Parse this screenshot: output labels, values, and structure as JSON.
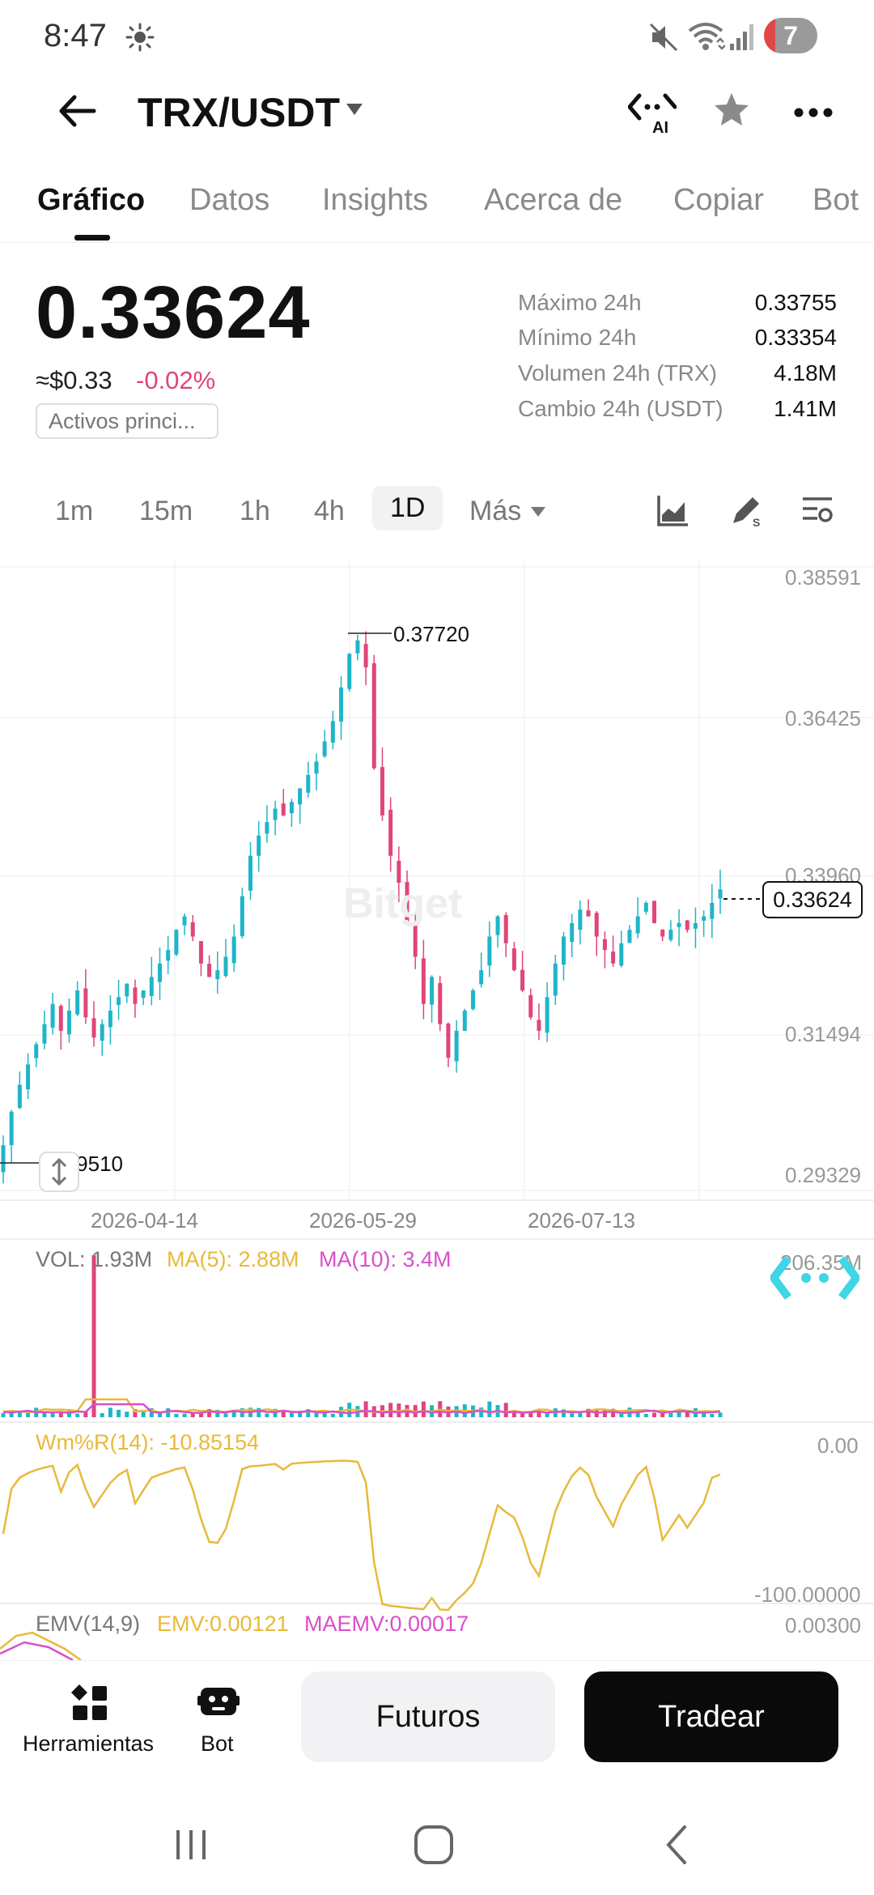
{
  "status_bar": {
    "time": "8:47",
    "notification_count": "7",
    "icons": [
      "sun-icon",
      "mute-icon",
      "wifi-icon",
      "signal-icon"
    ]
  },
  "header": {
    "pair": "TRX/USDT",
    "icons": [
      "back-icon",
      "ai-icon",
      "star-icon",
      "more-icon"
    ]
  },
  "tabs": [
    {
      "label": "Gráfico",
      "active": true
    },
    {
      "label": "Datos"
    },
    {
      "label": "Insights"
    },
    {
      "label": "Acerca de"
    },
    {
      "label": "Copiar"
    },
    {
      "label": "Bot"
    }
  ],
  "ticker": {
    "price": "0.33624",
    "usd_approx": "≈$0.33",
    "change": "-0.02%",
    "tag": "Activos princi...",
    "stats": [
      {
        "label": "Máximo 24h",
        "value": "0.33755"
      },
      {
        "label": "Mínimo 24h",
        "value": "0.33354"
      },
      {
        "label": "Volumen 24h (TRX)",
        "value": "4.18M"
      },
      {
        "label": "Cambio 24h (USDT)",
        "value": "1.41M"
      }
    ]
  },
  "intervals": [
    {
      "label": "1m"
    },
    {
      "label": "15m"
    },
    {
      "label": "1h"
    },
    {
      "label": "4h"
    },
    {
      "label": "1D",
      "active": true
    },
    {
      "label": "Más"
    }
  ],
  "toolbar_icons": [
    "chart-type-icon",
    "draw-icon",
    "indicator-settings-icon"
  ],
  "chart": {
    "watermark": "Bitget",
    "y_ticks": [
      "0.38591",
      "0.36425",
      "0.33960",
      "0.31494",
      "0.29329"
    ],
    "x_ticks": [
      "2026-04-14",
      "2026-05-29",
      "2026-07-13"
    ],
    "high_label": "0.37720",
    "low_label": "0.29510",
    "current_price": "0.33624",
    "colors": {
      "up": "#1fb5c9",
      "down": "#e0457b",
      "ma5": "#e8b93a",
      "ma10": "#d94fc9"
    }
  },
  "chart_data": {
    "type": "candlestick",
    "interval": "1D",
    "x_ticks": [
      "2026-04-14",
      "2026-05-29",
      "2026-07-13"
    ],
    "y_ticks": [
      0.38591,
      0.36425,
      0.3396,
      0.31494,
      0.29329
    ],
    "ylim": [
      0.29329,
      0.38591
    ],
    "high": 0.3772,
    "low": 0.2951,
    "last": 0.33624,
    "close_path": [
      0.3,
      0.305,
      0.309,
      0.312,
      0.315,
      0.318,
      0.321,
      0.317,
      0.32,
      0.323,
      0.319,
      0.316,
      0.318,
      0.32,
      0.322,
      0.324,
      0.321,
      0.323,
      0.325,
      0.327,
      0.329,
      0.332,
      0.334,
      0.331,
      0.327,
      0.325,
      0.326,
      0.328,
      0.331,
      0.337,
      0.343,
      0.346,
      0.348,
      0.35,
      0.349,
      0.351,
      0.353,
      0.355,
      0.357,
      0.36,
      0.363,
      0.368,
      0.373,
      0.375,
      0.371,
      0.356,
      0.349,
      0.343,
      0.339,
      0.333,
      0.328,
      0.321,
      0.325,
      0.318,
      0.313,
      0.317,
      0.32,
      0.323,
      0.326,
      0.331,
      0.334,
      0.33,
      0.326,
      0.323,
      0.319,
      0.317,
      0.322,
      0.327,
      0.331,
      0.333,
      0.335,
      0.334,
      0.331,
      0.329,
      0.327,
      0.33,
      0.332,
      0.334,
      0.336,
      0.333,
      0.331,
      0.332,
      0.333,
      0.332,
      0.333,
      0.334,
      0.336,
      0.338
    ],
    "volume": {
      "label": "VOL: 1.93M",
      "ma5": "MA(5): 2.88M",
      "ma10": "MA(10): 3.4M",
      "axis_max": "206.35M"
    },
    "williams_r": {
      "label": "Wm%R(14): -10.85154",
      "ticks": [
        "0.00",
        "-100.00000"
      ]
    },
    "emv": {
      "label": "EMV(14,9)",
      "emv": "EMV:0.00121",
      "maemv": "MAEMV:0.00017",
      "tick": "0.00300"
    }
  },
  "bottom_bar": {
    "tools_label": "Herramientas",
    "bot_label": "Bot",
    "futures_label": "Futuros",
    "trade_label": "Tradear"
  },
  "nav_icons": [
    "recents-icon",
    "home-icon",
    "back-nav-icon"
  ]
}
